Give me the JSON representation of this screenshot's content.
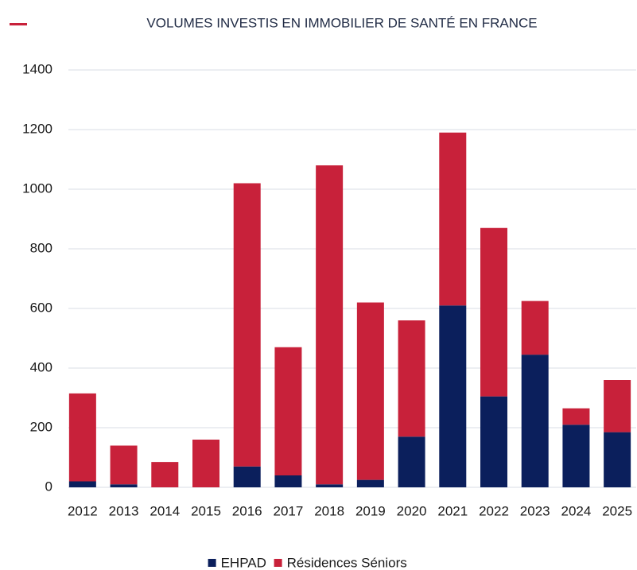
{
  "chart_data": {
    "type": "stacked_bar",
    "title": "VOLUMES INVESTIS EN IMMOBILIER DE SANTÉ EN FRANCE",
    "categories": [
      "2012",
      "2013",
      "2014",
      "2015",
      "2016",
      "2017",
      "2018",
      "2019",
      "2020",
      "2021",
      "2022",
      "2023",
      "2024",
      "2025"
    ],
    "series": [
      {
        "name": "EHPAD",
        "color": "#0b1f5c",
        "values": [
          20,
          10,
          0,
          0,
          70,
          40,
          10,
          25,
          170,
          610,
          305,
          445,
          210,
          185
        ]
      },
      {
        "name": "Résidences Séniors",
        "color": "#c8213a",
        "values": [
          295,
          130,
          85,
          160,
          950,
          430,
          1070,
          595,
          390,
          580,
          565,
          180,
          55,
          175
        ]
      }
    ],
    "ylim": [
      0,
      1400
    ],
    "yticks": [
      0,
      200,
      400,
      600,
      800,
      1000,
      1200,
      1400
    ],
    "grid": true,
    "legend": "bottom"
  }
}
